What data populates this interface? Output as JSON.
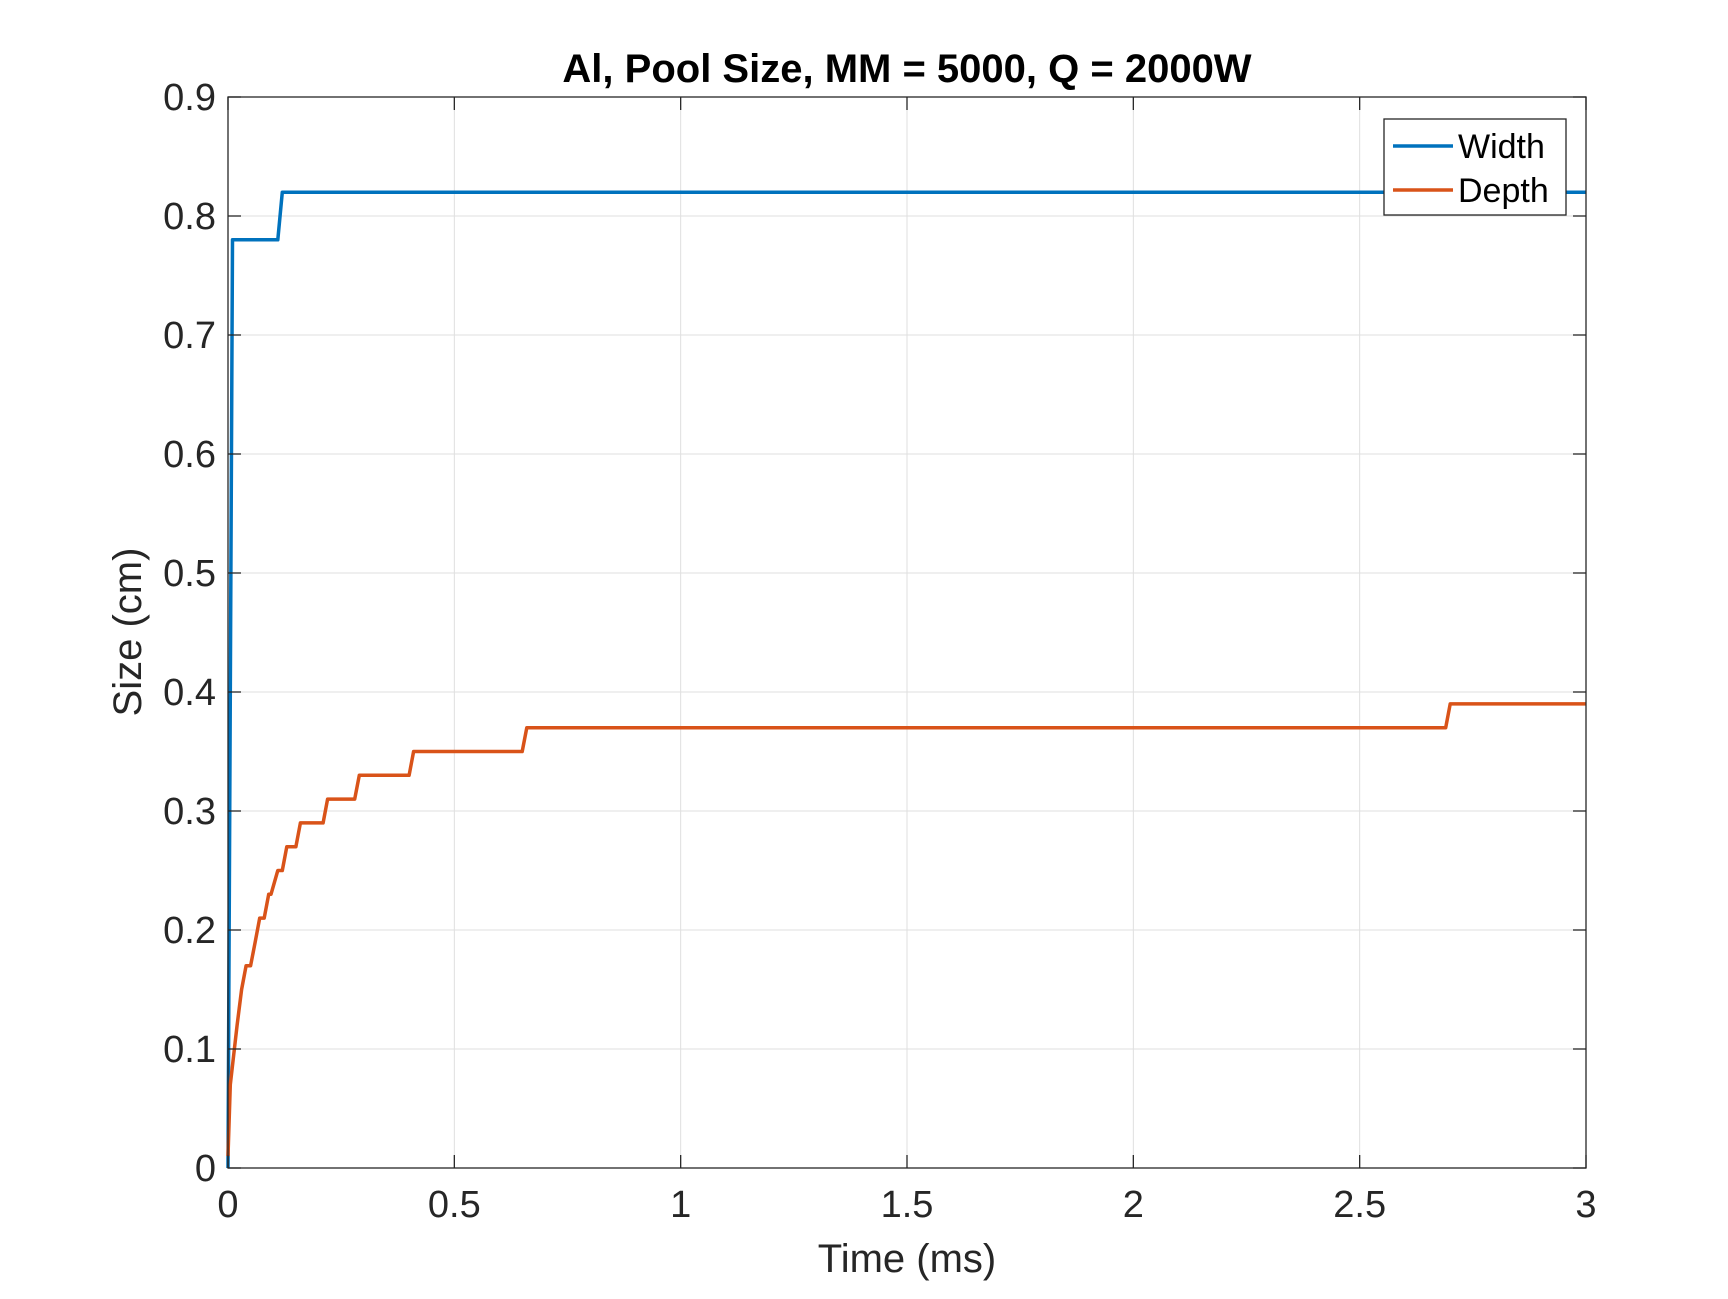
{
  "chart_data": {
    "type": "line",
    "title": "Al, Pool Size, MM = 5000, Q = 2000W",
    "xlabel": "Time (ms)",
    "ylabel": "Size (cm)",
    "xlim": [
      0,
      3
    ],
    "ylim": [
      0,
      0.9
    ],
    "xticks": [
      0,
      0.5,
      1,
      1.5,
      2,
      2.5,
      3
    ],
    "xtick_labels": [
      "0",
      "0.5",
      "1",
      "1.5",
      "2",
      "2.5",
      "3"
    ],
    "yticks": [
      0,
      0.1,
      0.2,
      0.3,
      0.4,
      0.5,
      0.6,
      0.7,
      0.8,
      0.9
    ],
    "ytick_labels": [
      "0",
      "0.1",
      "0.2",
      "0.3",
      "0.4",
      "0.5",
      "0.6",
      "0.7",
      "0.8",
      "0.9"
    ],
    "grid": true,
    "legend_position": "top-right",
    "series": [
      {
        "name": "Width",
        "color": "#0072BD",
        "x": [
          0,
          0.01,
          0.11,
          0.12,
          3.0
        ],
        "y": [
          0,
          0.78,
          0.78,
          0.82,
          0.82
        ]
      },
      {
        "name": "Depth",
        "color": "#D95319",
        "x": [
          0,
          0.005,
          0.02,
          0.03,
          0.04,
          0.05,
          0.06,
          0.07,
          0.075,
          0.08,
          0.09,
          0.095,
          0.11,
          0.12,
          0.13,
          0.14,
          0.15,
          0.16,
          0.17,
          0.21,
          0.22,
          0.28,
          0.29,
          0.4,
          0.41,
          0.65,
          0.66,
          2.69,
          2.7,
          3.0
        ],
        "y": [
          0.01,
          0.07,
          0.12,
          0.15,
          0.17,
          0.17,
          0.19,
          0.21,
          0.21,
          0.21,
          0.23,
          0.23,
          0.25,
          0.25,
          0.27,
          0.27,
          0.27,
          0.29,
          0.29,
          0.29,
          0.31,
          0.31,
          0.33,
          0.33,
          0.35,
          0.35,
          0.37,
          0.37,
          0.39,
          0.39
        ]
      }
    ]
  }
}
